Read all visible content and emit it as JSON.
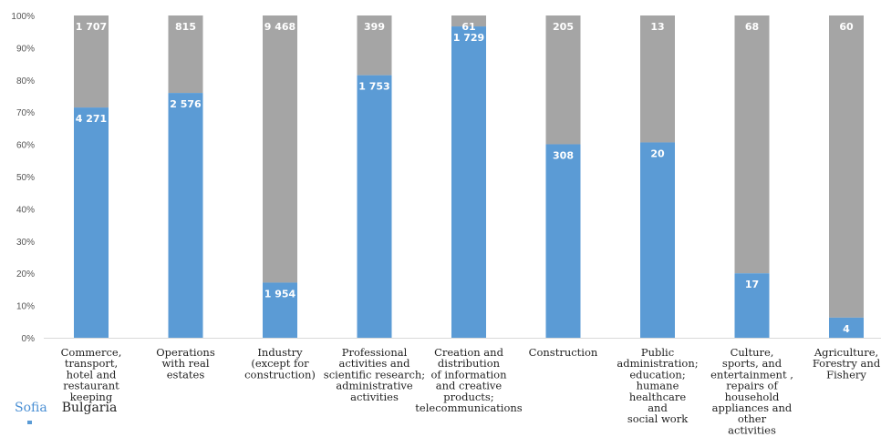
{
  "chart_data": {
    "type": "bar",
    "stacked": true,
    "normalized": true,
    "ylim": [
      0,
      100
    ],
    "yticks": [
      "0%",
      "10%",
      "20%",
      "30%",
      "40%",
      "50%",
      "60%",
      "70%",
      "80%",
      "90%",
      "100%"
    ],
    "grid": false,
    "legend_position": "bottom-left",
    "categories": [
      [
        "Commerce,",
        "transport,",
        "hotel and",
        "restaurant",
        "keeping"
      ],
      [
        "Operations",
        "with real",
        "estates"
      ],
      [
        "Industry",
        "(except for",
        "construction)"
      ],
      [
        "Professional",
        "activities and",
        "scientific research;",
        "administrative",
        "activities"
      ],
      [
        "Creation and",
        "distribution",
        "of information",
        "and creative",
        "products;",
        "telecommunications"
      ],
      [
        "Construction"
      ],
      [
        "Public",
        "administration;",
        "education;",
        "humane",
        "healthcare",
        "and",
        "social work"
      ],
      [
        "Culture,",
        "sports, and",
        "entertainment ,",
        "repairs of",
        "household",
        "appliances and",
        "other",
        "activities"
      ],
      [
        "Agriculture,",
        "Forestry and",
        "Fishery"
      ]
    ],
    "series": [
      {
        "name": "Sofia",
        "color": "#5b9bd5",
        "values": [
          4271,
          2576,
          1954,
          1753,
          1729,
          308,
          20,
          17,
          4
        ],
        "labels": [
          "4 271",
          "2 576",
          "1 954",
          "1 753",
          "1 729",
          "308",
          "20",
          "17",
          "4"
        ]
      },
      {
        "name": "Bulgaria",
        "color": "#a5a5a5",
        "values": [
          1707,
          815,
          9468,
          399,
          61,
          205,
          13,
          68,
          60
        ],
        "labels": [
          "1 707",
          "815",
          "9 468",
          "399",
          "61",
          "205",
          "13",
          "68",
          "60"
        ]
      }
    ]
  }
}
